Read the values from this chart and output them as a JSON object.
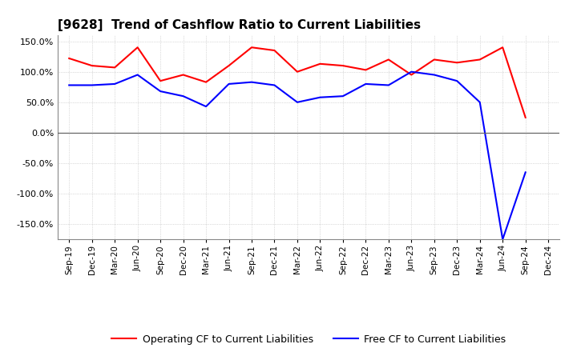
{
  "title": "[9628]  Trend of Cashflow Ratio to Current Liabilities",
  "x_labels": [
    "Sep-19",
    "Dec-19",
    "Mar-20",
    "Jun-20",
    "Sep-20",
    "Dec-20",
    "Mar-21",
    "Jun-21",
    "Sep-21",
    "Dec-21",
    "Mar-22",
    "Jun-22",
    "Sep-22",
    "Dec-22",
    "Mar-23",
    "Jun-23",
    "Sep-23",
    "Dec-23",
    "Mar-24",
    "Jun-24",
    "Sep-24",
    "Dec-24"
  ],
  "operating_cf": [
    122,
    110,
    107,
    140,
    85,
    95,
    83,
    110,
    140,
    135,
    100,
    113,
    110,
    103,
    120,
    95,
    120,
    115,
    120,
    140,
    25,
    null
  ],
  "free_cf": [
    78,
    78,
    80,
    95,
    68,
    60,
    43,
    80,
    83,
    78,
    50,
    58,
    60,
    80,
    78,
    100,
    95,
    85,
    50,
    -175,
    -65,
    null
  ],
  "operating_color": "#FF0000",
  "free_color": "#0000FF",
  "background_color": "#FFFFFF",
  "grid_color": "#AAAAAA",
  "ylim": [
    -175,
    160
  ],
  "yticks": [
    -150,
    -100,
    -50,
    0,
    50,
    100,
    150
  ],
  "legend_op": "Operating CF to Current Liabilities",
  "legend_free": "Free CF to Current Liabilities"
}
